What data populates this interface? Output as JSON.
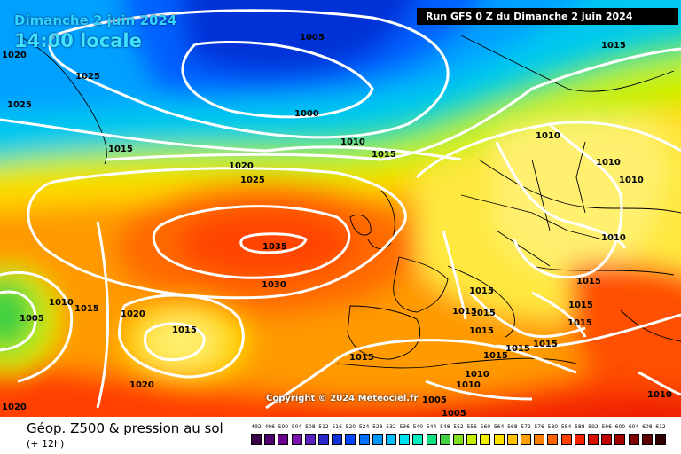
{
  "header": {
    "date_label": "Dimanche 2 juin 2024",
    "time_label": "14:00 locale",
    "run_label": "Run GFS 0 Z du Dimanche 2 juin 2024",
    "copyright": "Copyright © 2024 Meteociel.fr"
  },
  "footer": {
    "title": "Géop. Z500 & pression au sol",
    "subtitle": "(+ 12h)"
  },
  "isobar_labels": {
    "l01": "1020",
    "l02": "1025",
    "l03": "1025",
    "l04": "1015",
    "l05": "1005",
    "l06": "1000",
    "l07": "1010",
    "l08": "1015",
    "l09": "1020",
    "l10": "1025",
    "l11": "1015",
    "l12": "1010",
    "l13": "1010",
    "l14": "1010",
    "l15": "1010",
    "l16": "1035",
    "l17": "1030",
    "l18": "1015",
    "l19": "1010",
    "l20": "1005",
    "l21": "1015",
    "l22": "1020",
    "l23": "1015",
    "l24": "1020",
    "l25": "1020",
    "l26": "1015",
    "l27": "1015",
    "l28": "1015",
    "l29": "1015",
    "l30": "1015",
    "l31": "1015",
    "l32": "1015",
    "l33": "1015",
    "l34": "1015",
    "l35": "1015",
    "l36": "1010",
    "l37": "1010",
    "l38": "1005",
    "l39": "1005",
    "l40": "1010"
  },
  "legend_values": [
    "492",
    "496",
    "500",
    "504",
    "508",
    "512",
    "516",
    "520",
    "524",
    "528",
    "532",
    "536",
    "540",
    "544",
    "548",
    "552",
    "556",
    "560",
    "564",
    "568",
    "572",
    "576",
    "580",
    "584",
    "588",
    "592",
    "596",
    "600",
    "604",
    "608",
    "612"
  ],
  "legend_colors": [
    "#3a0048",
    "#4f0070",
    "#6a0090",
    "#7a10b0",
    "#5a20c0",
    "#2a28c8",
    "#1030d8",
    "#0048ff",
    "#0070ff",
    "#0098ff",
    "#00c0ff",
    "#00e0f0",
    "#00f0c0",
    "#10e080",
    "#40d040",
    "#80e020",
    "#c0f000",
    "#f0f000",
    "#ffe000",
    "#ffc000",
    "#ffa000",
    "#ff8000",
    "#ff6000",
    "#ff4000",
    "#f02000",
    "#d81000",
    "#c00000",
    "#a00000",
    "#800000",
    "#600000",
    "#300000"
  ]
}
